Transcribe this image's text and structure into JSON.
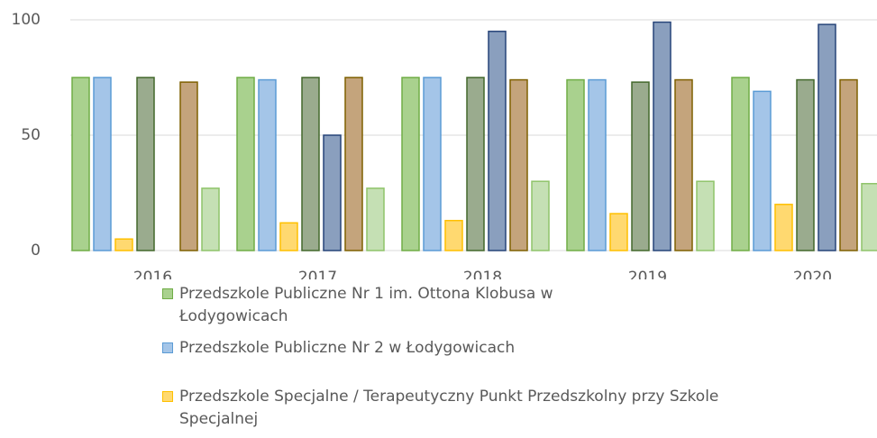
{
  "chart_data": {
    "type": "bar",
    "categories": [
      "2016",
      "2017",
      "2018",
      "2019",
      "2020"
    ],
    "ylim": [
      0,
      100
    ],
    "yticks": [
      0,
      50,
      100
    ],
    "grid": true,
    "series": [
      {
        "name": "Przedszkole Publiczne Nr 1  im. Ottona Klobusa w Łodygowicach",
        "color": "#a9d18e",
        "edgecolor": "#70ad47",
        "values": [
          75,
          75,
          75,
          74,
          75
        ]
      },
      {
        "name": "Przedszkole Publiczne Nr 2  w Łodygowicach",
        "color": "#a4c5e8",
        "edgecolor": "#5b9bd5",
        "values": [
          75,
          74,
          75,
          74,
          69
        ]
      },
      {
        "name": "Przedszkole Specjalne / Terapeutyczny Punkt Przedszkolny przy Szkole Specjalnej",
        "color": "#ffd970",
        "edgecolor": "#ffc000",
        "values": [
          5,
          12,
          13,
          16,
          20
        ]
      },
      {
        "color": "#9aab8e",
        "edgecolor": "#43682b",
        "values": [
          75,
          75,
          75,
          73,
          74
        ]
      },
      {
        "color": "#8a9fbe",
        "edgecolor": "#264478",
        "values": [
          null,
          50,
          95,
          99,
          98
        ]
      },
      {
        "color": "#c4a47c",
        "edgecolor": "#7f6000",
        "values": [
          73,
          75,
          74,
          74,
          74
        ]
      },
      {
        "color": "#c5e0b4",
        "edgecolor": "#8fc46a",
        "values": [
          27,
          27,
          30,
          30,
          29
        ]
      }
    ]
  }
}
